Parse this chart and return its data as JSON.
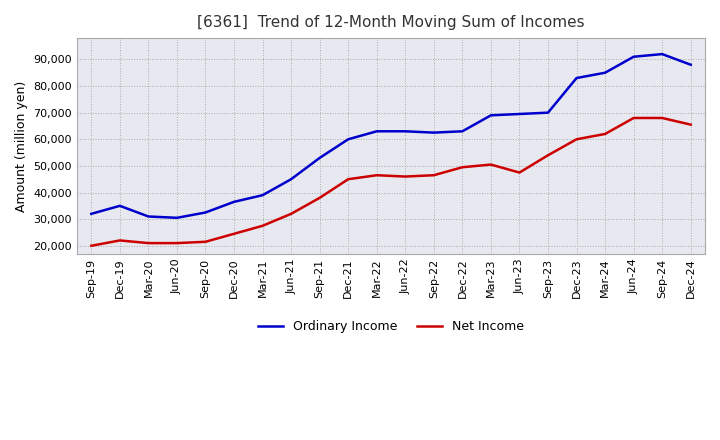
{
  "title": "[6361]  Trend of 12-Month Moving Sum of Incomes",
  "ylabel": "Amount (million yen)",
  "background_color": "#ffffff",
  "plot_bg_color": "#e8e8f0",
  "grid_color": "#aaaaaa",
  "x_labels": [
    "Sep-19",
    "Dec-19",
    "Mar-20",
    "Jun-20",
    "Sep-20",
    "Dec-20",
    "Mar-21",
    "Jun-21",
    "Sep-21",
    "Dec-21",
    "Mar-22",
    "Jun-22",
    "Sep-22",
    "Dec-22",
    "Mar-23",
    "Jun-23",
    "Sep-23",
    "Dec-23",
    "Mar-24",
    "Jun-24",
    "Sep-24",
    "Dec-24"
  ],
  "ordinary_income": [
    32000,
    35000,
    31000,
    30500,
    32500,
    36500,
    39000,
    45000,
    53000,
    60000,
    63000,
    63000,
    62500,
    63000,
    69000,
    69500,
    70000,
    83000,
    85000,
    91000,
    92000,
    88000
  ],
  "net_income": [
    20000,
    22000,
    21000,
    21000,
    21500,
    24500,
    27500,
    32000,
    38000,
    45000,
    46500,
    46000,
    46500,
    49500,
    50500,
    47500,
    54000,
    60000,
    62000,
    68000,
    68000,
    65500
  ],
  "ordinary_color": "#0000cc",
  "net_color": "#cc0000",
  "ylim": [
    17000,
    98000
  ],
  "yticks": [
    20000,
    30000,
    40000,
    50000,
    60000,
    70000,
    80000,
    90000
  ],
  "line_width": 1.8,
  "title_fontsize": 11,
  "legend_fontsize": 9,
  "tick_fontsize": 8,
  "ylabel_fontsize": 9
}
